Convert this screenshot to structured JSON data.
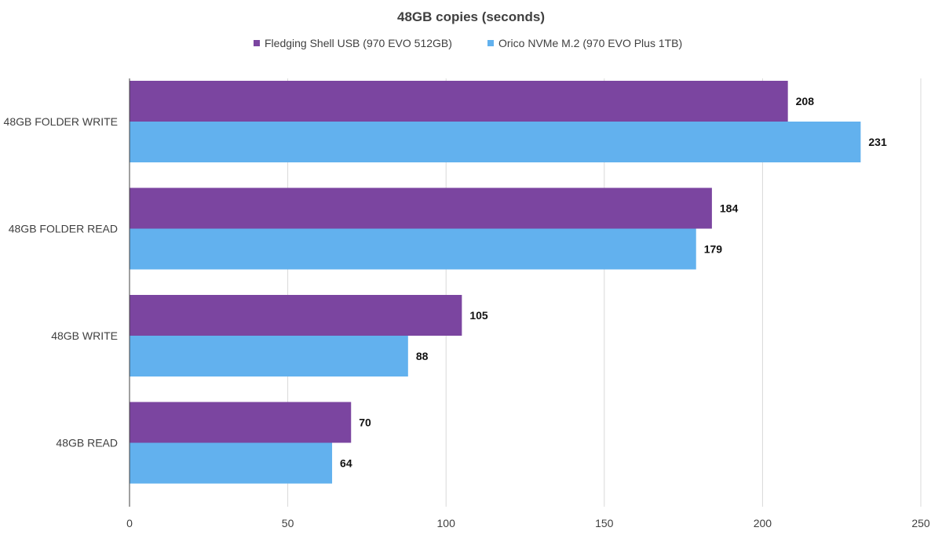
{
  "chart_data": {
    "type": "bar",
    "orientation": "horizontal",
    "title": "48GB copies (seconds)",
    "xlabel": "",
    "ylabel": "",
    "categories": [
      "48GB FOLDER WRITE",
      "48GB FOLDER READ",
      "48GB WRITE",
      "48GB READ"
    ],
    "series": [
      {
        "name": "Fledging Shell USB (970 EVO 512GB)",
        "color": "#7b45a0",
        "values": [
          208,
          184,
          105,
          70
        ]
      },
      {
        "name": "Orico NVMe M.2 (970 EVO Plus 1TB)",
        "color": "#62b1ee",
        "values": [
          231,
          179,
          88,
          64
        ]
      }
    ],
    "xlim": [
      0,
      250
    ],
    "xticks": [
      0,
      50,
      100,
      150,
      200,
      250
    ],
    "grid": true,
    "legend_position": "top-center"
  }
}
